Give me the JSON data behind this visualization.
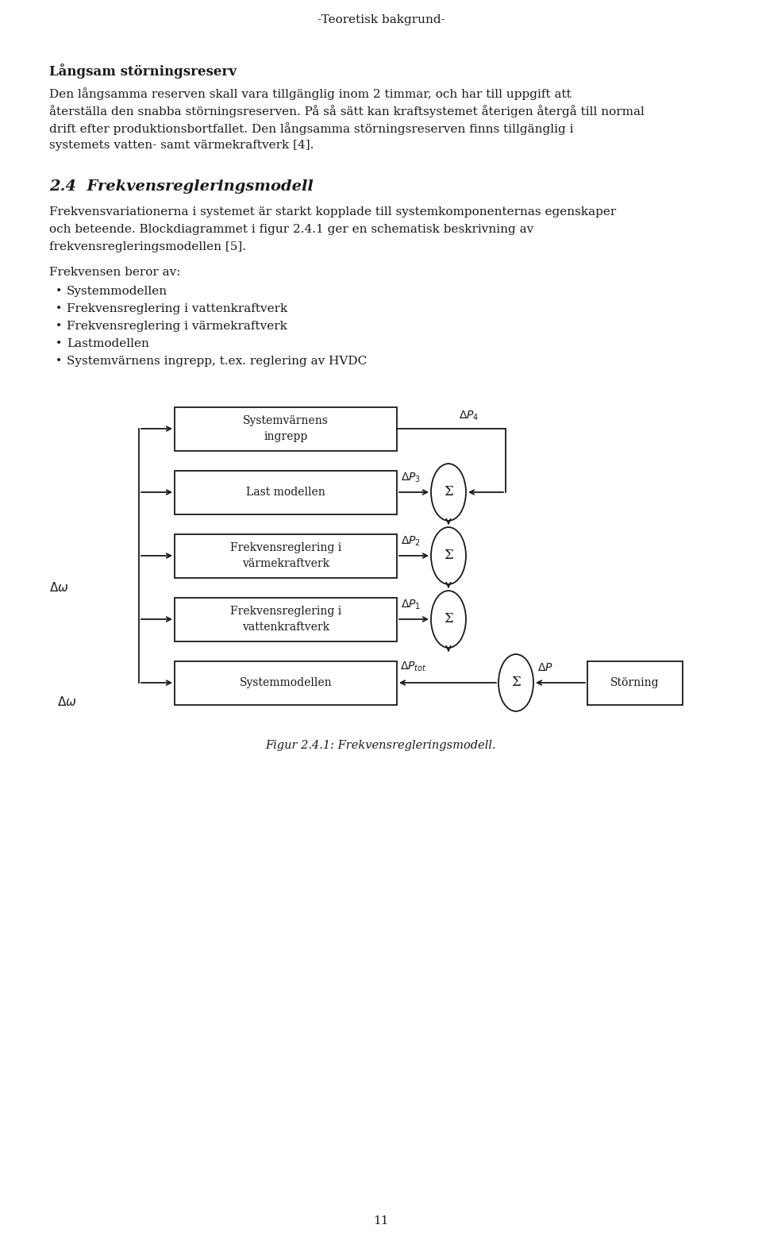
{
  "title_top": "-Teoretisk bakgrund-",
  "section_heading": "Långsam störningsreserv",
  "para1_lines": [
    "Den långsamma reserven skall vara tillgänglig inom 2 timmar, och har till uppgift att",
    "återställa den snabba störningsreserven. På så sätt kan kraftsystemet återigen återgå till normal",
    "drift efter produktionsbortfallet. Den långsamma störningsreserven finns tillgänglig i",
    "systemets vatten- samt värmekraftverk [4]."
  ],
  "section2_heading": "2.4  Frekvensregleringsmodell",
  "para2_lines": [
    "Frekvensvariationerna i systemet är starkt kopplade till systemkomponenternas egenskaper",
    "och beteende. Blockdiagrammet i figur 2.4.1 ger en schematisk beskrivning av",
    "frekvensregleringsmodellen [5]."
  ],
  "freq_label": "Frekvensen beror av:",
  "bullets": [
    "Systemmodellen",
    "Frekvensreglering i vattenkraftverk",
    "Frekvensreglering i värmekraftverk",
    "Lastmodellen",
    "Systemvärnens ingrepp, t.ex. reglering av HVDC"
  ],
  "fig_caption": "Figur 2.4.1: Frekvensregleringsmodell.",
  "page_number": "11",
  "bg_color": "#ffffff",
  "text_color": "#1a1a1a",
  "box_labels": [
    "Systemvärnens\ningrepp",
    "Last modellen",
    "Frekvensreglering i\nvärmekraftverk",
    "Frekvensreglering i\nvattenkraftverk",
    "Systemmodellen",
    "Störning"
  ]
}
